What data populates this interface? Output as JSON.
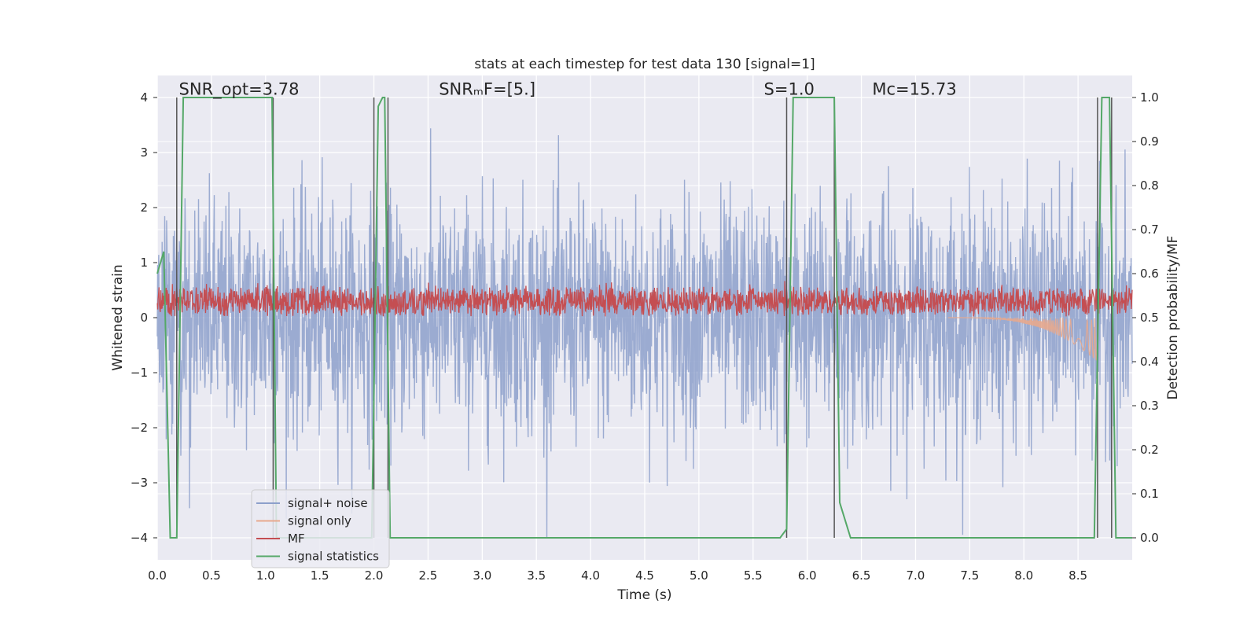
{
  "chart_data": {
    "type": "line",
    "title": "stats at each timestep for test data 130 [signal=1]",
    "xlabel": "Time (s)",
    "ylabel": "Whitened strain",
    "y2label": "Detection probability/MF",
    "xlim": [
      0.0,
      9.0
    ],
    "ylim": [
      -4.4,
      4.4
    ],
    "y2lim": [
      -0.05,
      1.05
    ],
    "x_ticks": [
      0.0,
      0.5,
      1.0,
      1.5,
      2.0,
      2.5,
      3.0,
      3.5,
      4.0,
      4.5,
      5.0,
      5.5,
      6.0,
      6.5,
      7.0,
      7.5,
      8.0,
      8.5
    ],
    "x_tick_labels": [
      "0.0",
      "0.5",
      "1.0",
      "1.5",
      "2.0",
      "2.5",
      "3.0",
      "3.5",
      "4.0",
      "4.5",
      "5.0",
      "5.5",
      "6.0",
      "6.5",
      "7.0",
      "7.5",
      "8.0",
      "8.5"
    ],
    "y_ticks": [
      4,
      3,
      2,
      1,
      0,
      -1,
      -2,
      -3,
      -4
    ],
    "y_tick_labels": [
      "4",
      "3",
      "2",
      "1",
      "0",
      "−1",
      "−2",
      "−3",
      "−4"
    ],
    "y2_ticks": [
      1.0,
      0.9,
      0.8,
      0.7,
      0.6,
      0.5,
      0.4,
      0.3,
      0.2,
      0.1,
      0.0
    ],
    "y2_tick_labels": [
      "1.0",
      "0.9",
      "0.8",
      "0.7",
      "0.6",
      "0.5",
      "0.4",
      "0.3",
      "0.2",
      "0.1",
      "0.0"
    ],
    "grid": true,
    "legend_position": "lower-left",
    "annotations": [
      {
        "text": "SNR_opt=3.78",
        "x": 0.2,
        "y": 4.05
      },
      {
        "text": "SNRₘF=[5.]",
        "x": 2.6,
        "y": 4.05
      },
      {
        "text": "S=1.0",
        "x": 5.6,
        "y": 4.05
      },
      {
        "text": "Mᴄ=15.73",
        "x": 6.6,
        "y": 4.05
      }
    ],
    "vertical_lines_x": [
      0.18,
      1.07,
      2.0,
      2.13,
      5.81,
      6.25,
      8.68,
      8.81
    ],
    "series": [
      {
        "name": "signal+ noise",
        "color": "#8da0cb",
        "axis": "left",
        "noise_std": 1.05,
        "x_range": [
          0.0,
          9.0
        ]
      },
      {
        "name": "signal only",
        "color": "#e8a98d",
        "axis": "left",
        "chirp_start": 7.3,
        "chirp_end": 8.68,
        "chirp_peak_amplitude": 0.8
      },
      {
        "name": "MF",
        "color": "#c44e52",
        "axis": "left",
        "mean": 0.3,
        "spread": 0.22,
        "x_range": [
          0.0,
          9.0
        ]
      },
      {
        "name": "signal statistics",
        "color": "#55a868",
        "axis": "right",
        "x": [
          0.0,
          0.06,
          0.12,
          0.18,
          0.24,
          0.3,
          1.0,
          1.06,
          1.1,
          1.2,
          1.98,
          2.04,
          2.08,
          2.1,
          2.15,
          2.2,
          5.75,
          5.81,
          5.87,
          6.25,
          6.3,
          6.4,
          8.65,
          8.72,
          8.79,
          8.85,
          9.0
        ],
        "y": [
          0.6,
          0.65,
          0.0,
          0.0,
          1.0,
          1.0,
          1.0,
          1.0,
          0.0,
          0.0,
          0.0,
          0.98,
          1.0,
          1.0,
          0.0,
          0.0,
          0.0,
          0.02,
          1.0,
          1.0,
          0.08,
          0.0,
          0.0,
          1.0,
          1.0,
          0.0,
          0.0
        ]
      }
    ]
  }
}
